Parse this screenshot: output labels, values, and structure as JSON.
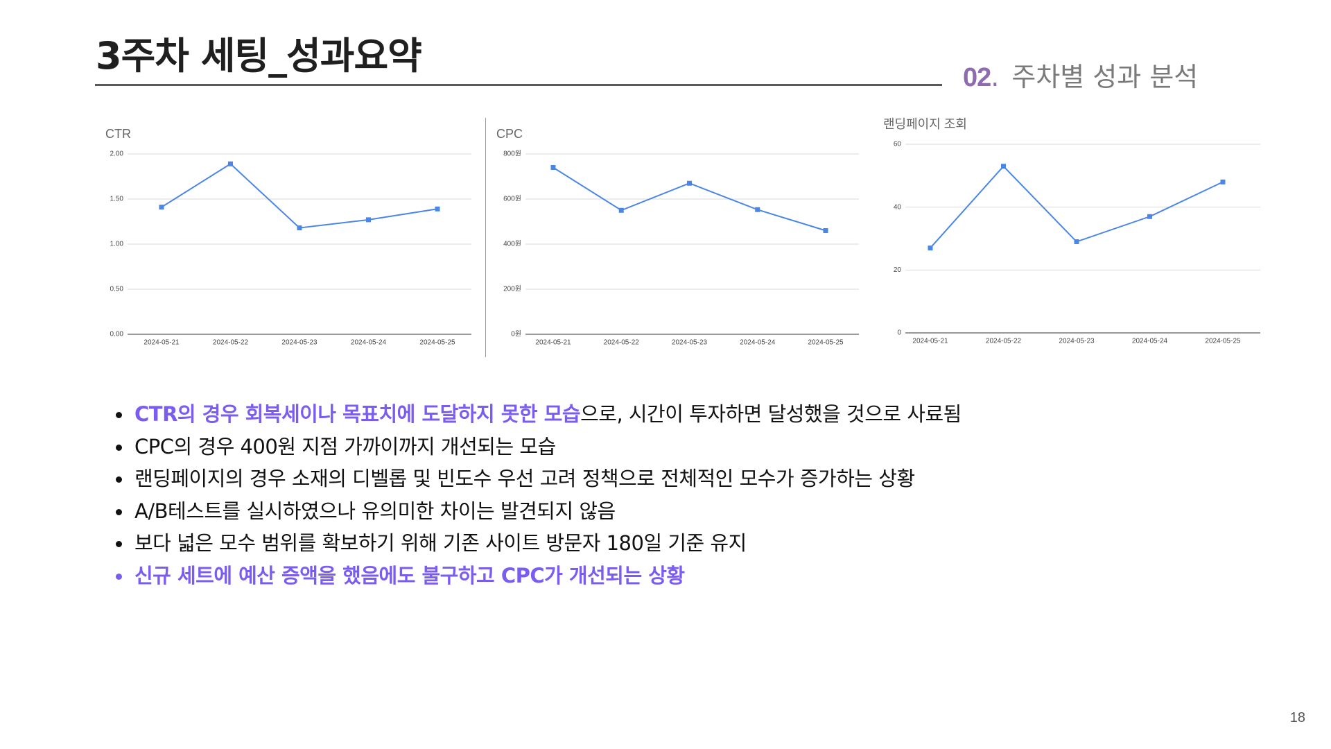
{
  "header": {
    "title": "3주차 세팅_성과요약",
    "section_number": "02",
    "section_dot": ".",
    "section_title": "주차별 성과 분석"
  },
  "chart_data": [
    {
      "type": "line",
      "title": "CTR",
      "x": [
        "2024-05-21",
        "2024-05-22",
        "2024-05-23",
        "2024-05-24",
        "2024-05-25"
      ],
      "values": [
        1.41,
        1.89,
        1.18,
        1.27,
        1.39
      ],
      "ylim": [
        0,
        2
      ],
      "yticks": [
        "0.00",
        "0.50",
        "1.00",
        "1.50",
        "2.00"
      ],
      "ytick_values": [
        0,
        0.5,
        1,
        1.5,
        2
      ],
      "grid": true,
      "color": "#4a86e8"
    },
    {
      "type": "line",
      "title": "CPC",
      "x": [
        "2024-05-21",
        "2024-05-22",
        "2024-05-23",
        "2024-05-24",
        "2024-05-25"
      ],
      "values": [
        740,
        550,
        670,
        553,
        460
      ],
      "ylim": [
        0,
        800
      ],
      "yticks": [
        "0원",
        "200원",
        "400원",
        "600원",
        "800원"
      ],
      "ytick_values": [
        0,
        200,
        400,
        600,
        800
      ],
      "grid": true,
      "color": "#4a86e8"
    },
    {
      "type": "line",
      "title": "랜딩페이지 조회",
      "x": [
        "2024-05-21",
        "2024-05-22",
        "2024-05-23",
        "2024-05-24",
        "2024-05-25"
      ],
      "values": [
        27,
        53,
        29,
        37,
        48
      ],
      "ylim": [
        0,
        60
      ],
      "yticks": [
        "0",
        "20",
        "40",
        "60"
      ],
      "ytick_values": [
        0,
        20,
        40,
        60
      ],
      "grid": true,
      "color": "#4a86e8"
    }
  ],
  "bullets": [
    {
      "highlight": "CTR의 경우 회복세이나 목표치에 도달하지 못한 모습",
      "text": "으로, 시간이 투자하면 달성했을 것으로 사료됨"
    },
    {
      "highlight": "",
      "text": "CPC의 경우 400원 지점 가까이까지 개선되는 모습"
    },
    {
      "highlight": "",
      "text": "랜딩페이지의 경우 소재의 디벨롭 및 빈도수 우선 고려 정책으로 전체적인 모수가 증가하는 상황"
    },
    {
      "highlight": "",
      "text": "A/B테스트를 실시하였으나 유의미한 차이는 발견되지 않음"
    },
    {
      "highlight": "",
      "text": "보다 넓은 모수 범위를 확보하기 위해 기존 사이트 방문자 180일 기준 유지"
    },
    {
      "highlight": "신규 세트에 예산 증액을 했음에도 불구하고 CPC가 개선되는 상황",
      "text": ""
    }
  ],
  "page_number": "18"
}
